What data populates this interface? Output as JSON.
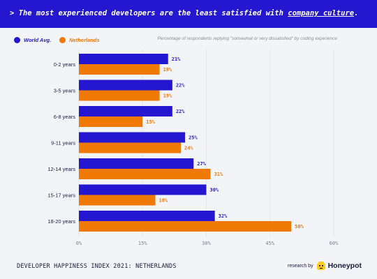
{
  "header": {
    "prefix": "> The most experienced developers are the least satisfied with ",
    "underlined": "company culture",
    "suffix": "."
  },
  "legend": [
    {
      "label": "World Avg.",
      "color": "#2417cf"
    },
    {
      "label": "Netherlands",
      "color": "#f07805"
    }
  ],
  "note": "Percentage of respondents replying \"somewhat or very dissatisfied\" by coding experience",
  "footer": {
    "index_label": "DEVELOPER HAPPINESS INDEX 2021: NETHERLANDS",
    "research_by": "research by",
    "brand": "Honeypot",
    "brand_icon": "honeypot-bee-icon"
  },
  "chart_data": {
    "type": "bar",
    "orientation": "horizontal",
    "categories": [
      "0-2 years",
      "3-5 years",
      "6-8 years",
      "9-11 years",
      "12-14 years",
      "15-17 years",
      "18-20 years"
    ],
    "series": [
      {
        "name": "World Avg.",
        "color": "#2417cf",
        "values": [
          21,
          22,
          22,
          25,
          27,
          30,
          32
        ]
      },
      {
        "name": "Netherlands",
        "color": "#f07805",
        "values": [
          19,
          19,
          15,
          24,
          31,
          18,
          50
        ]
      }
    ],
    "value_labels": [
      [
        "21%",
        "22%",
        "22%",
        "25%",
        "27%",
        "30%",
        "32%"
      ],
      [
        "19%",
        "19%",
        "15%",
        "24%",
        "31%",
        "18%",
        "50%"
      ]
    ],
    "xticks": [
      0,
      15,
      30,
      45,
      60
    ],
    "xtick_labels": [
      "0%",
      "15%",
      "30%",
      "45%",
      "60%"
    ],
    "xlim": [
      0,
      60
    ],
    "grid": true
  }
}
